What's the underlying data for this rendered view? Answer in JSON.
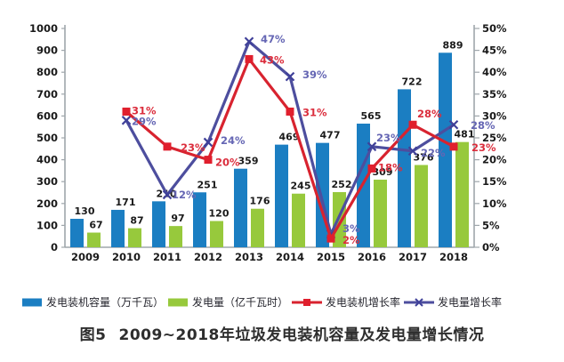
{
  "caption": {
    "label": "图5",
    "text": "2009~2018年垃圾发电装机容量及发电量增长情况"
  },
  "chart_data": {
    "type": "combo",
    "title": "图5 2009~2018年垃圾发电装机容量及发电量增长情况",
    "categories": [
      "2009",
      "2010",
      "2011",
      "2012",
      "2013",
      "2014",
      "2015",
      "2016",
      "2017",
      "2018"
    ],
    "series": [
      {
        "name": "发电装机容量（万千瓦）",
        "kind": "bar",
        "axis": "left",
        "color": "#1b7ec2",
        "label_color": "#1a1a1a",
        "values": [
          130,
          171,
          210,
          251,
          359,
          469,
          477,
          565,
          722,
          889
        ]
      },
      {
        "name": "发电量（亿千瓦时）",
        "kind": "bar",
        "axis": "left",
        "color": "#97c93c",
        "label_color": "#1a1a1a",
        "values": [
          67,
          87,
          97,
          120,
          176,
          245,
          252,
          309,
          376,
          481
        ]
      },
      {
        "name": "发电装机增长率",
        "kind": "line",
        "marker": "square",
        "axis": "right",
        "color": "#d8232f",
        "marker_color": "#e01f2d",
        "label_color": "#db2e3d",
        "values": [
          null,
          31,
          23,
          20,
          43,
          31,
          2,
          18,
          28,
          23
        ],
        "labels": [
          null,
          "31%",
          "23%",
          "20%",
          "43%",
          "31%",
          "2%",
          "18%",
          "28%",
          "23%"
        ]
      },
      {
        "name": "发电量增长率",
        "kind": "line",
        "marker": "x",
        "axis": "right",
        "color": "#4d4e9e",
        "marker_color": "#3f4099",
        "label_color": "#6566b4",
        "values": [
          null,
          29,
          12,
          24,
          47,
          39,
          3,
          23,
          22,
          28
        ],
        "labels": [
          null,
          "29%",
          "12%",
          "24%",
          "47%",
          "39%",
          "3%",
          "23%",
          "22%",
          "28%"
        ]
      }
    ],
    "left_axis": {
      "min": 0,
      "max": 1000,
      "step": 100,
      "ticks": [
        "0",
        "100",
        "200",
        "300",
        "400",
        "500",
        "600",
        "700",
        "800",
        "900",
        "1000"
      ]
    },
    "right_axis": {
      "min": 0,
      "max": 50,
      "step": 5,
      "ticks": [
        "0%",
        "5%",
        "10%",
        "15%",
        "20%",
        "25%",
        "30%",
        "35%",
        "40%",
        "45%",
        "50%"
      ]
    },
    "grid": false,
    "legend_position": "bottom",
    "axis_color": "#9fa6ab",
    "tick_label_color": "#1a1a1a"
  }
}
